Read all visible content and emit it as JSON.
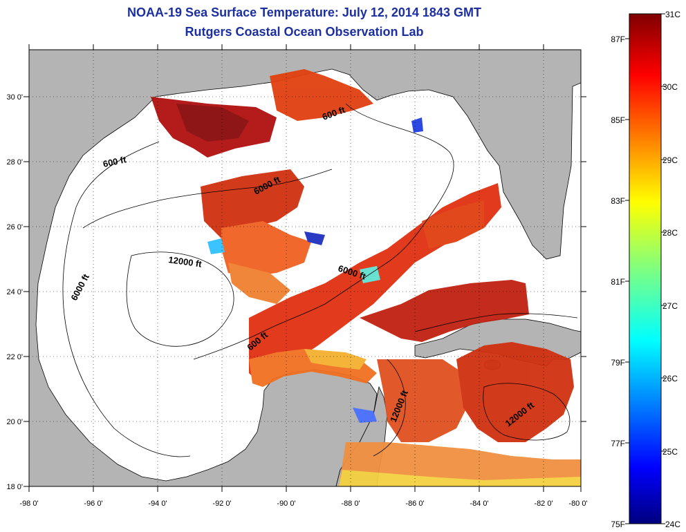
{
  "header": {
    "title": "NOAA-19 Sea Surface Temperature:  July 12, 2014 1843 GMT",
    "subtitle": "Rutgers Coastal Ocean Observation Lab"
  },
  "map": {
    "lon_ticks": [
      "-98 0'",
      "-96 0'",
      "-94 0'",
      "-92 0'",
      "-90 0'",
      "-88 0'",
      "-86 0'",
      "-84 0'",
      "-82 0'",
      "-80 0'"
    ],
    "lat_ticks": [
      "30 0'",
      "28 0'",
      "26 0'",
      "24 0'",
      "22 0'",
      "20 0'",
      "18 0'"
    ],
    "contour_labels": [
      "600 ft",
      "600 ft",
      "600 ft",
      "6000 ft",
      "6000 ft",
      "6000 ft",
      "12000 ft",
      "12000 ft",
      "12000 ft"
    ],
    "land_color": "#b4b4b4",
    "water_color": "#ffffff"
  },
  "colorbar": {
    "celsius_labels": [
      "31C",
      "30C",
      "29C",
      "28C",
      "27C",
      "26C",
      "25C",
      "24C"
    ],
    "fahrenheit_labels": [
      "87F",
      "85F",
      "83F",
      "81F",
      "79F",
      "77F",
      "75F"
    ],
    "min_c": 24,
    "max_c": 31
  }
}
